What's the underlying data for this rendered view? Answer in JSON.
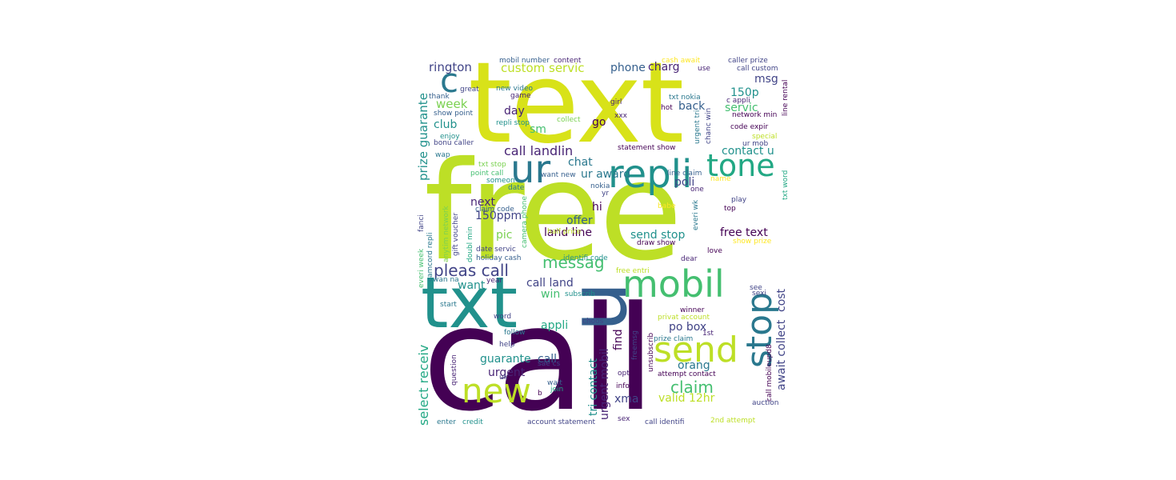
{
  "wordcloud": {
    "words": [
      "call",
      "free",
      "text",
      "txt",
      "u",
      "mobil",
      "repli",
      "ur",
      "tone",
      "stop",
      "send",
      "new",
      "c",
      "claim",
      "messag",
      "pleas call",
      "call landlin",
      "prize guarante",
      "select receiv",
      "custom servic",
      "rington",
      "week",
      "club",
      "day",
      "go",
      "sm",
      "chat",
      "charg",
      "phone",
      "msg",
      "150p",
      "servic",
      "back",
      "contact u",
      "poli",
      "ur award",
      "hi",
      "next",
      "150ppm",
      "offer",
      "land line",
      "pic",
      "send stop",
      "free text",
      "cost",
      "await collect",
      "want",
      "win",
      "call land",
      "appli",
      "po box",
      "find",
      "guarante",
      "call",
      "urgent",
      "tri contact",
      "urgent mobil",
      "orang",
      "valid 12hr",
      "xma",
      "mobil number",
      "content",
      "cash await",
      "caller prize",
      "use",
      "call custom",
      "great",
      "new video",
      "thank",
      "game",
      "girl",
      "txt nokia",
      "hot",
      "c appli",
      "line rental",
      "show point",
      "repli stop",
      "collect",
      "xxx",
      "network min",
      "code expir",
      "urgent tri",
      "chanc win",
      "enjoy",
      "bonu caller",
      "statement show",
      "ur mob",
      "wap",
      "special",
      "txt stop",
      "point call",
      "want new",
      "line claim",
      "someon",
      "txt word",
      "date",
      "nokia",
      "yr",
      "one",
      "name",
      "claim code",
      "half price",
      "camera phone",
      "play",
      "top",
      "fanci",
      "gift voucher",
      "anytim network",
      "babe",
      "everi wk",
      "everi week",
      "camcord repli",
      "doubl min",
      "date servic",
      "holiday cash",
      "identifi code",
      "draw show",
      "show prize",
      "love",
      "dear",
      "free entri",
      "wan na",
      "year",
      "subscrib",
      "see",
      "sexi",
      "start",
      "winner",
      "word",
      "privat account",
      "choos",
      "follow",
      "freemsg",
      "1st",
      "prize claim",
      "help",
      "unsubscrib",
      "question",
      "attempt contact",
      "uk",
      "opt",
      "sae cs",
      "wait",
      "join",
      "info",
      "b",
      "call mobileupd8",
      "auction",
      "enter",
      "credit",
      "account statement",
      "sex",
      "call identifi",
      "2nd attempt"
    ],
    "palette": [
      "#440154",
      "#482475",
      "#414487",
      "#355f8d",
      "#2a788e",
      "#21918c",
      "#22a884",
      "#44bf70",
      "#7ad151",
      "#bddf26",
      "#fde725"
    ]
  }
}
